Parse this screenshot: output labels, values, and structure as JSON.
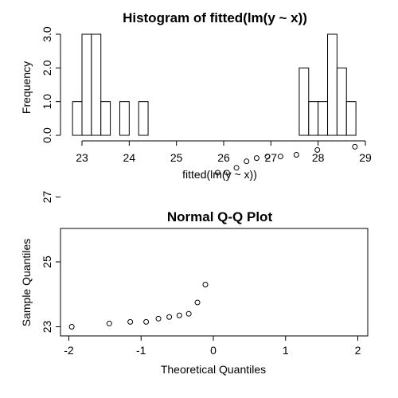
{
  "chart_data": [
    {
      "type": "bar",
      "title": "Histogram of fitted(lm(y ~ x))",
      "xlabel": "fitted(lm(y ~ x))",
      "ylabel": "Frequency",
      "bin_width": 0.2,
      "xlim": [
        23,
        29
      ],
      "ylim": [
        0,
        3
      ],
      "xticks": [
        23,
        24,
        25,
        26,
        27,
        28,
        29
      ],
      "yticks": [
        "0.0",
        "1.0",
        "2.0",
        "3.0"
      ],
      "bins": [
        {
          "start": 22.8,
          "end": 23.0,
          "count": 1
        },
        {
          "start": 23.0,
          "end": 23.2,
          "count": 3
        },
        {
          "start": 23.2,
          "end": 23.4,
          "count": 3
        },
        {
          "start": 23.4,
          "end": 23.6,
          "count": 1
        },
        {
          "start": 23.6,
          "end": 23.8,
          "count": 0
        },
        {
          "start": 23.8,
          "end": 24.0,
          "count": 1
        },
        {
          "start": 24.0,
          "end": 24.2,
          "count": 0
        },
        {
          "start": 24.2,
          "end": 24.4,
          "count": 1
        },
        {
          "start": 24.4,
          "end": 24.6,
          "count": 0
        },
        {
          "start": 24.6,
          "end": 24.8,
          "count": 0
        },
        {
          "start": 24.8,
          "end": 25.0,
          "count": 0
        },
        {
          "start": 25.0,
          "end": 25.2,
          "count": 0
        },
        {
          "start": 25.2,
          "end": 25.4,
          "count": 0
        },
        {
          "start": 25.4,
          "end": 25.6,
          "count": 0
        },
        {
          "start": 25.6,
          "end": 25.8,
          "count": 0
        },
        {
          "start": 25.8,
          "end": 26.0,
          "count": 0
        },
        {
          "start": 26.0,
          "end": 26.2,
          "count": 0
        },
        {
          "start": 26.2,
          "end": 26.4,
          "count": 0
        },
        {
          "start": 26.4,
          "end": 26.6,
          "count": 0
        },
        {
          "start": 26.6,
          "end": 26.8,
          "count": 0
        },
        {
          "start": 26.8,
          "end": 27.0,
          "count": 0
        },
        {
          "start": 27.0,
          "end": 27.2,
          "count": 0
        },
        {
          "start": 27.2,
          "end": 27.4,
          "count": 0
        },
        {
          "start": 27.4,
          "end": 27.6,
          "count": 0
        },
        {
          "start": 27.6,
          "end": 27.8,
          "count": 2
        },
        {
          "start": 27.8,
          "end": 28.0,
          "count": 1
        },
        {
          "start": 28.0,
          "end": 28.2,
          "count": 1
        },
        {
          "start": 28.2,
          "end": 28.4,
          "count": 3
        },
        {
          "start": 28.4,
          "end": 28.6,
          "count": 2
        },
        {
          "start": 28.6,
          "end": 28.8,
          "count": 1
        }
      ]
    },
    {
      "type": "scatter",
      "title": "Normal Q-Q Plot",
      "xlabel": "Theoretical Quantiles",
      "ylabel": "Sample Quantiles",
      "xlim": [
        -2,
        2
      ],
      "ylim": [
        22.9,
        28.8
      ],
      "xticks": [
        -2,
        -1,
        0,
        1,
        2
      ],
      "yticks": [
        23,
        25,
        27
      ],
      "points": [
        {
          "x": -1.96,
          "y": 23.0
        },
        {
          "x": -1.44,
          "y": 23.1
        },
        {
          "x": -1.15,
          "y": 23.15
        },
        {
          "x": -0.93,
          "y": 23.15
        },
        {
          "x": -0.76,
          "y": 23.25
        },
        {
          "x": -0.61,
          "y": 23.3
        },
        {
          "x": -0.47,
          "y": 23.35
        },
        {
          "x": -0.34,
          "y": 23.4
        },
        {
          "x": -0.22,
          "y": 23.75
        },
        {
          "x": -0.11,
          "y": 24.3
        },
        {
          "x": 0.06,
          "y": 27.75
        },
        {
          "x": 0.19,
          "y": 27.75
        },
        {
          "x": 0.32,
          "y": 27.9
        },
        {
          "x": 0.46,
          "y": 28.1
        },
        {
          "x": 0.6,
          "y": 28.2
        },
        {
          "x": 0.75,
          "y": 28.25
        },
        {
          "x": 0.93,
          "y": 28.25
        },
        {
          "x": 1.15,
          "y": 28.3
        },
        {
          "x": 1.44,
          "y": 28.45
        },
        {
          "x": 1.96,
          "y": 28.55
        }
      ]
    }
  ]
}
